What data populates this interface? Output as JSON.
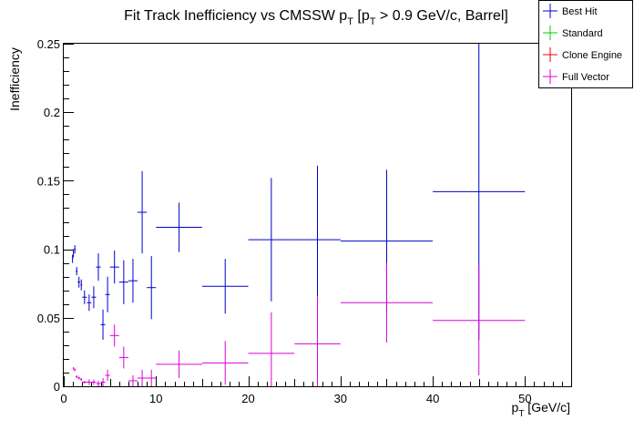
{
  "chart_data": {
    "type": "scatter",
    "title": "Fit Track Inefficiency vs CMSSW p",
    "title_parts": {
      "a": "Fit Track Inefficiency vs CMSSW p",
      "sub1": "T",
      "b": " [p",
      "sub2": "T",
      "c": " > 0.9 GeV/c, Barrel]"
    },
    "xlabel": {
      "main": "p",
      "sub": "T",
      "rest": " [GeV/c]"
    },
    "ylabel": "Inefficiency",
    "xlim": [
      0,
      55
    ],
    "ylim": [
      0,
      0.25
    ],
    "x_ticks": [
      0,
      10,
      20,
      30,
      40,
      50
    ],
    "x_tick_labels": [
      "0",
      "10",
      "20",
      "30",
      "40",
      "50"
    ],
    "y_ticks": [
      0,
      0.05,
      0.1,
      0.15,
      0.2,
      0.25
    ],
    "y_tick_labels": [
      "0",
      "0.05",
      "0.1",
      "0.15",
      "0.2",
      "0.25"
    ],
    "grid": false,
    "legend_position": "top-right",
    "legend": [
      {
        "name": "Best Hit",
        "color": "#0000cc"
      },
      {
        "name": "Standard",
        "color": "#00cc00"
      },
      {
        "name": "Clone Engine",
        "color": "#ee0000"
      },
      {
        "name": "Full Vector",
        "color": "#dd00dd"
      }
    ],
    "series": [
      {
        "name": "Best Hit",
        "color": "#0000cc",
        "points": [
          {
            "x": 0.95,
            "xerr": 0.05,
            "y": 0.093,
            "yerr": 0.003
          },
          {
            "x": 1.05,
            "xerr": 0.05,
            "y": 0.097,
            "yerr": 0.003
          },
          {
            "x": 1.2,
            "xerr": 0.1,
            "y": 0.1,
            "yerr": 0.003
          },
          {
            "x": 1.4,
            "xerr": 0.1,
            "y": 0.084,
            "yerr": 0.003
          },
          {
            "x": 1.65,
            "xerr": 0.15,
            "y": 0.076,
            "yerr": 0.004
          },
          {
            "x": 1.9,
            "xerr": 0.1,
            "y": 0.074,
            "yerr": 0.004
          },
          {
            "x": 2.25,
            "xerr": 0.25,
            "y": 0.065,
            "yerr": 0.005
          },
          {
            "x": 2.75,
            "xerr": 0.25,
            "y": 0.061,
            "yerr": 0.006
          },
          {
            "x": 3.25,
            "xerr": 0.25,
            "y": 0.065,
            "yerr": 0.008
          },
          {
            "x": 3.75,
            "xerr": 0.25,
            "y": 0.087,
            "yerr": 0.01
          },
          {
            "x": 4.25,
            "xerr": 0.25,
            "y": 0.045,
            "yerr": 0.011
          },
          {
            "x": 4.75,
            "xerr": 0.25,
            "y": 0.067,
            "yerr": 0.013
          },
          {
            "x": 5.5,
            "xerr": 0.5,
            "y": 0.087,
            "yerr": 0.012
          },
          {
            "x": 6.5,
            "xerr": 0.5,
            "y": 0.076,
            "yerr": 0.016
          },
          {
            "x": 7.5,
            "xerr": 0.5,
            "y": 0.077,
            "yerr": 0.016
          },
          {
            "x": 8.5,
            "xerr": 0.5,
            "y": 0.127,
            "yerr": 0.03
          },
          {
            "x": 9.5,
            "xerr": 0.5,
            "y": 0.072,
            "yerr": 0.023
          },
          {
            "x": 12.5,
            "xerr": 2.5,
            "y": 0.116,
            "yerr": 0.018
          },
          {
            "x": 17.5,
            "xerr": 2.5,
            "y": 0.073,
            "yerr": 0.02
          },
          {
            "x": 22.5,
            "xerr": 2.5,
            "y": 0.107,
            "yerr": 0.045
          },
          {
            "x": 27.5,
            "xerr": 2.5,
            "y": 0.107,
            "yerr": 0.054
          },
          {
            "x": 35,
            "xerr": 5,
            "y": 0.106,
            "yerr": 0.052
          },
          {
            "x": 45,
            "xerr": 5,
            "y": 0.142,
            "yerr": 0.108
          }
        ]
      },
      {
        "name": "Full Vector",
        "color": "#dd00dd",
        "points": [
          {
            "x": 1.05,
            "xerr": 0.05,
            "y": 0.013,
            "yerr": 0.001
          },
          {
            "x": 1.2,
            "xerr": 0.1,
            "y": 0.012,
            "yerr": 0.001
          },
          {
            "x": 1.4,
            "xerr": 0.1,
            "y": 0.007,
            "yerr": 0.001
          },
          {
            "x": 1.65,
            "xerr": 0.15,
            "y": 0.006,
            "yerr": 0.001
          },
          {
            "x": 1.9,
            "xerr": 0.1,
            "y": 0.005,
            "yerr": 0.001
          },
          {
            "x": 2.25,
            "xerr": 0.25,
            "y": 0.003,
            "yerr": 0.001
          },
          {
            "x": 2.75,
            "xerr": 0.25,
            "y": 0.003,
            "yerr": 0.002
          },
          {
            "x": 3.25,
            "xerr": 0.25,
            "y": 0.003,
            "yerr": 0.002
          },
          {
            "x": 3.75,
            "xerr": 0.25,
            "y": 0.002,
            "yerr": 0.002
          },
          {
            "x": 4.25,
            "xerr": 0.25,
            "y": 0.003,
            "yerr": 0.003
          },
          {
            "x": 4.75,
            "xerr": 0.25,
            "y": 0.008,
            "yerr": 0.004
          },
          {
            "x": 5.5,
            "xerr": 0.5,
            "y": 0.037,
            "yerr": 0.008
          },
          {
            "x": 6.5,
            "xerr": 0.5,
            "y": 0.021,
            "yerr": 0.008
          },
          {
            "x": 7.5,
            "xerr": 0.5,
            "y": 0.004,
            "yerr": 0.004
          },
          {
            "x": 8.5,
            "xerr": 0.5,
            "y": 0.006,
            "yerr": 0.006
          },
          {
            "x": 9.5,
            "xerr": 0.5,
            "y": 0.006,
            "yerr": 0.006
          },
          {
            "x": 12.5,
            "xerr": 2.5,
            "y": 0.016,
            "yerr": 0.01
          },
          {
            "x": 17.5,
            "xerr": 2.5,
            "y": 0.017,
            "yerr": 0.016
          },
          {
            "x": 22.5,
            "xerr": 2.5,
            "y": 0.024,
            "yerr": 0.03
          },
          {
            "x": 27.5,
            "xerr": 2.5,
            "y": 0.031,
            "yerr": 0.035
          },
          {
            "x": 35,
            "xerr": 5,
            "y": 0.061,
            "yerr": 0.029
          },
          {
            "x": 45,
            "xerr": 5,
            "y": 0.048,
            "yerr": 0.04
          }
        ]
      }
    ]
  }
}
